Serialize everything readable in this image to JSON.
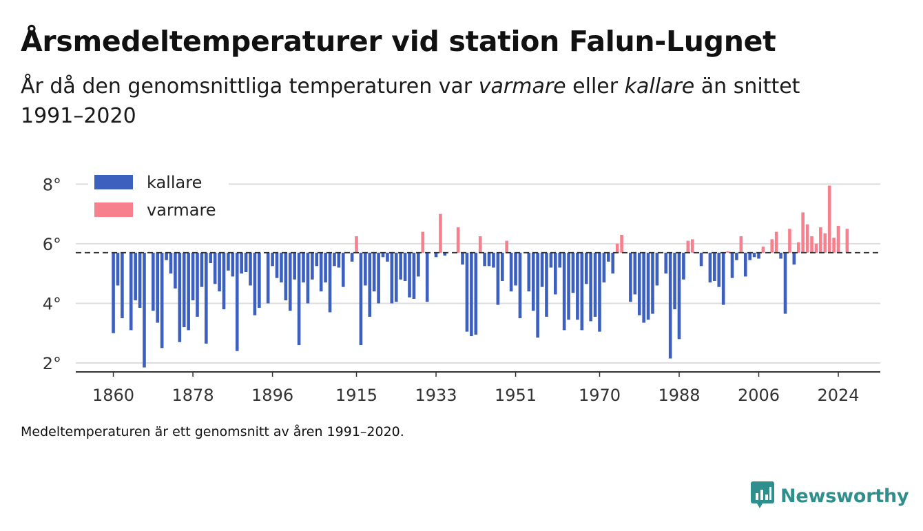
{
  "title": "Årsmedeltemperaturer vid station Falun-Lugnet",
  "subtitle": {
    "part1": "År då den genomsnittliga temperaturen var ",
    "warm_word": "varmare",
    "part2": " eller ",
    "cold_word": "kallare",
    "part3": " än snittet 1991–2020"
  },
  "note": "Medeltemperaturen är ett genomsnitt av åren 1991–2020.",
  "brand": "Newsworthy",
  "colors": {
    "cold": "#3d5fbd",
    "warm": "#f7808f",
    "baseline": "#333333",
    "grid": "#dddddd",
    "brand": "#2f8f8c"
  },
  "chart_data": {
    "type": "bar",
    "baseline": 5.7,
    "ylim": [
      1.7,
      8.4
    ],
    "xlim": [
      1851.5,
      2033.5
    ],
    "yticks": [
      2,
      4,
      6,
      8
    ],
    "ytick_labels": [
      "2°",
      "4°",
      "6°",
      "8°"
    ],
    "xticks": [
      1860,
      1878,
      1896,
      1915,
      1933,
      1951,
      1970,
      1988,
      2006,
      2024
    ],
    "grid": true,
    "legend": {
      "position": "top-left",
      "items": [
        {
          "key": "cold",
          "label": "kallare"
        },
        {
          "key": "warm",
          "label": "varmare"
        }
      ]
    },
    "series": [
      {
        "name": "Årsmedeltemperatur",
        "start_year": 1860,
        "values": [
          3.0,
          4.6,
          3.5,
          5.7,
          3.1,
          4.1,
          3.85,
          1.85,
          5.7,
          3.75,
          3.35,
          2.5,
          5.45,
          5.0,
          4.5,
          2.7,
          3.2,
          3.1,
          4.1,
          3.55,
          4.55,
          2.65,
          5.35,
          4.65,
          4.4,
          3.8,
          5.1,
          4.9,
          2.4,
          5.0,
          5.05,
          4.6,
          3.6,
          3.85,
          5.7,
          4.0,
          5.25,
          4.85,
          4.7,
          4.1,
          3.75,
          4.8,
          2.6,
          4.7,
          4.0,
          4.8,
          5.25,
          4.4,
          4.7,
          3.7,
          5.25,
          5.2,
          4.55,
          5.7,
          5.4,
          6.25,
          2.6,
          4.6,
          3.55,
          4.4,
          4.0,
          5.55,
          5.4,
          4.0,
          4.05,
          4.8,
          4.75,
          4.2,
          4.15,
          4.9,
          6.4,
          4.05,
          5.7,
          5.55,
          7.0,
          5.6,
          5.7,
          5.7,
          6.55,
          5.3,
          3.05,
          2.9,
          2.95,
          6.25,
          5.25,
          5.25,
          5.2,
          3.95,
          4.75,
          6.1,
          4.4,
          4.6,
          3.5,
          5.7,
          4.4,
          3.75,
          2.85,
          4.55,
          3.55,
          5.2,
          4.3,
          5.2,
          3.1,
          3.45,
          4.35,
          3.45,
          3.1,
          4.65,
          3.4,
          3.55,
          3.05,
          4.7,
          5.4,
          5.0,
          6.0,
          6.3,
          5.7,
          4.05,
          4.3,
          3.6,
          3.35,
          3.45,
          3.65,
          4.6,
          5.7,
          5.0,
          2.15,
          3.8,
          2.8,
          4.8,
          6.1,
          6.15,
          5.7,
          5.25,
          5.7,
          4.7,
          4.75,
          4.55,
          3.95,
          5.75,
          4.85,
          5.45,
          6.25,
          4.9,
          5.45,
          5.55,
          5.5,
          5.9,
          5.7,
          6.15,
          6.4,
          5.5,
          3.65,
          6.5,
          5.3,
          6.05,
          7.05,
          6.65,
          6.25,
          6.0,
          6.55,
          6.35,
          7.95,
          6.2,
          6.6,
          5.7,
          6.5
        ]
      }
    ]
  }
}
